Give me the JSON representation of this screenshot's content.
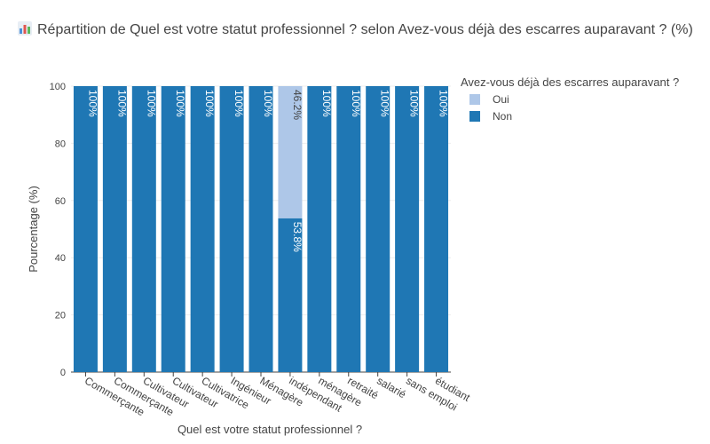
{
  "title": "Répartition de Quel est votre statut professionnel ? selon Avez-vous déjà des escarres auparavant ? (%)",
  "title_icon": "bar-chart-icon",
  "colors": {
    "oui": "#aec7e8",
    "non": "#1f77b4",
    "axis": "#444444",
    "grid": "#eeeeee"
  },
  "chart_data": {
    "type": "bar",
    "stacked": true,
    "categories": [
      "Commerçante",
      "Commerçante",
      "Cultivateur",
      "Cultivateur",
      "Cultivatrice",
      "Ingénieur",
      "Ménagère",
      "indépendant",
      "ménagère",
      "retraité",
      "salarié",
      "sans emploi",
      "étudiant"
    ],
    "series": [
      {
        "name": "Non",
        "values": [
          100,
          100,
          100,
          100,
          100,
          100,
          100,
          53.8,
          100,
          100,
          100,
          100,
          100
        ],
        "labels": [
          "100%",
          "100%",
          "100%",
          "100%",
          "100%",
          "100%",
          "100%",
          "53.8%",
          "100%",
          "100%",
          "100%",
          "100%",
          "100%"
        ]
      },
      {
        "name": "Oui",
        "values": [
          0,
          0,
          0,
          0,
          0,
          0,
          0,
          46.2,
          0,
          0,
          0,
          0,
          0
        ],
        "labels": [
          "",
          "",
          "",
          "",
          "",
          "",
          "",
          "46.2%",
          "",
          "",
          "",
          "",
          ""
        ]
      }
    ],
    "xlabel": "Quel est votre statut professionnel ?",
    "ylabel": "Pourcentage (%)",
    "ylim": [
      0,
      100
    ],
    "yticks": [
      0,
      20,
      40,
      60,
      80,
      100
    ],
    "grid": true,
    "legend": {
      "title": "Avez-vous déjà des escarres auparavant ?",
      "entries": [
        "Oui",
        "Non"
      ],
      "placement": "top-right"
    }
  }
}
